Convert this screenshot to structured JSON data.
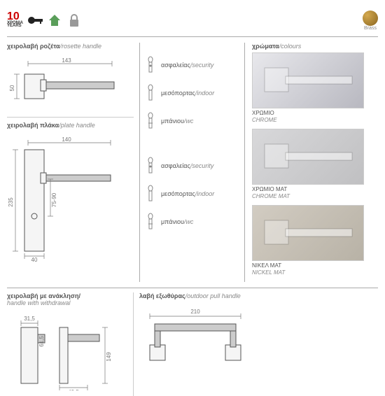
{
  "header": {
    "warranty_number": "10",
    "warranty_text1": "ΧΡΟΝΙΑ",
    "warranty_text2": "YEARS",
    "brass_label": "Brass"
  },
  "sections": {
    "rosette": {
      "title_gr": "χειρολαβή ροζέτα",
      "title_en": "/rosette handle",
      "dim_w": "143",
      "dim_h": "50"
    },
    "plate": {
      "title_gr": "χειρολαβή πλάκα",
      "title_en": "/plate handle",
      "dim_w": "140",
      "dim_h": "235",
      "dim_kh": "75-90",
      "dim_pw": "40"
    },
    "withdrawal": {
      "title_gr": "χειρολαβή με ανάκληση/",
      "title_en": "handle with withdrawal",
      "d1": "31,5",
      "d2": "61,5",
      "d3": "149",
      "d4": "49,5"
    },
    "outdoor": {
      "title_gr": "λαβή εξωθύρας",
      "title_en": "/outdoor pull handle",
      "dim_w": "210"
    }
  },
  "options": [
    {
      "gr": "ασφαλείας",
      "en": "/security"
    },
    {
      "gr": "μεσόπορτας",
      "en": "/indoor"
    },
    {
      "gr": "μπάνιου",
      "en": "/wc"
    }
  ],
  "colours": {
    "title_gr": "χρώματα",
    "title_en": "/colours",
    "items": [
      {
        "gr": "ΧΡΩΜΙΟ",
        "en": "CHROME",
        "bg1": "#e8e8ec",
        "bg2": "#b8b8c0"
      },
      {
        "gr": "ΧΡΩΜΙΟ ΜΑΤ",
        "en": "CHROME MAT",
        "bg1": "#d8d8da",
        "bg2": "#c0c0c2"
      },
      {
        "gr": "ΝΙΚΕΛ ΜΑΤ",
        "en": "NICKEL MAT",
        "bg1": "#d2ccc2",
        "bg2": "#b8b2a6"
      }
    ]
  }
}
